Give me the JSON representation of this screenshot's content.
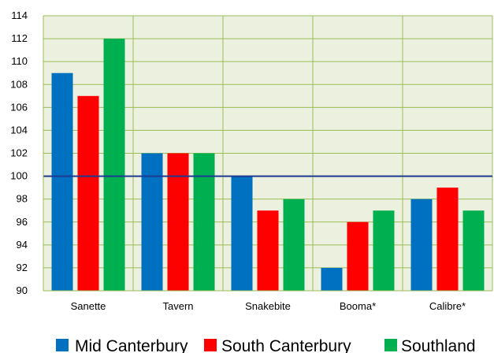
{
  "chart_data": {
    "type": "bar",
    "categories": [
      "Sanette",
      "Tavern",
      "Snakebite",
      "Booma*",
      "Calibre*"
    ],
    "series": [
      {
        "name": "Mid Canterbury",
        "color": "#0070C0",
        "values": [
          109,
          102,
          100,
          92,
          98
        ]
      },
      {
        "name": "South Canterbury",
        "color": "#FF0000",
        "values": [
          107,
          102,
          97,
          96,
          99
        ]
      },
      {
        "name": "Southland",
        "color": "#00B050",
        "values": [
          112,
          102,
          98,
          97,
          97
        ]
      }
    ],
    "ylim": [
      90,
      114
    ],
    "ytick_step": 2,
    "reference_line": {
      "value": 100,
      "color": "#1F3A93"
    },
    "plot_background": "#EBF1DE",
    "grid": true,
    "grid_color": "#9BBB59",
    "legend_position": "bottom"
  }
}
